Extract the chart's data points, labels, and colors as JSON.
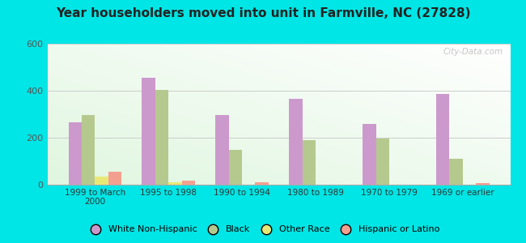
{
  "title": "Year householders moved into unit in Farmville, NC (27828)",
  "categories": [
    "1999 to March\n2000",
    "1995 to 1998",
    "1990 to 1994",
    "1980 to 1989",
    "1970 to 1979",
    "1969 or earlier"
  ],
  "series": {
    "White Non-Hispanic": [
      265,
      455,
      295,
      365,
      258,
      385
    ],
    "Black": [
      295,
      405,
      150,
      190,
      198,
      110
    ],
    "Other Race": [
      35,
      10,
      0,
      0,
      0,
      0
    ],
    "Hispanic or Latino": [
      55,
      18,
      12,
      0,
      0,
      8
    ]
  },
  "colors": {
    "White Non-Hispanic": "#cc99cc",
    "Black": "#b5c98e",
    "Other Race": "#e8e877",
    "Hispanic or Latino": "#f4a090"
  },
  "ylim": [
    0,
    600
  ],
  "yticks": [
    0,
    200,
    400,
    600
  ],
  "outer_bg": "#00e5e5",
  "watermark": "City-Data.com",
  "bar_width": 0.18
}
